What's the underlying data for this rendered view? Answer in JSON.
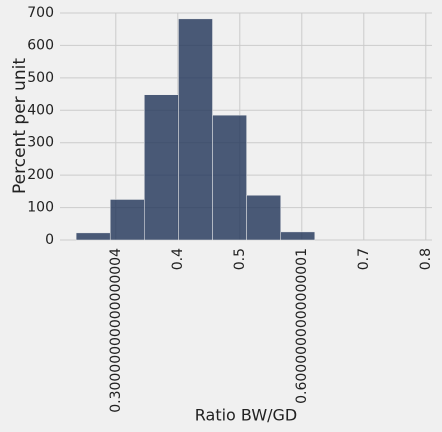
{
  "chart_data": {
    "type": "histogram",
    "xlabel": "Ratio BW/GD",
    "ylabel": "Percent per unit",
    "bins": [
      0.236,
      0.291,
      0.346,
      0.401,
      0.456,
      0.511,
      0.566,
      0.621
    ],
    "values": [
      22,
      125,
      448,
      682,
      385,
      138,
      25
    ],
    "color": "#1f3358",
    "xlim": [
      0.21,
      0.81
    ],
    "xticks": [
      0.30000000000000004,
      0.4,
      0.5,
      0.6000000000000001,
      0.7,
      0.8
    ],
    "ylim": [
      0,
      700
    ],
    "yticks": [
      0,
      100,
      200,
      300,
      400,
      500,
      600,
      700
    ],
    "grid": true
  }
}
